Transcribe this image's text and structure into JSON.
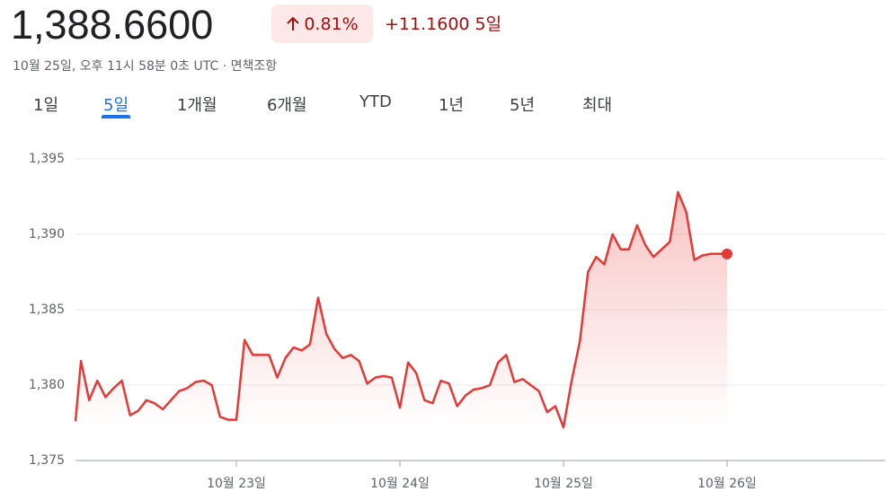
{
  "header": {
    "price": "1,388.6600",
    "change_pct": "0.81%",
    "change_abs": "+11.1600",
    "change_period": "5일",
    "timestamp": "10월 25일, 오후 11시 58분 0초 UTC",
    "separator": "·",
    "disclaimer": "면책조항"
  },
  "tabs": {
    "items": [
      "1일",
      "5일",
      "1개월",
      "6개월",
      "YTD",
      "1년",
      "5년",
      "최대"
    ],
    "selected": 1
  },
  "chart_data": {
    "type": "line",
    "color": "#e53935",
    "grid": true,
    "categories": [
      null,
      null,
      null,
      null,
      null,
      null,
      null,
      null,
      null,
      null,
      null,
      null,
      null,
      null,
      null,
      null,
      null,
      null,
      null,
      null,
      "10월 23일",
      null,
      null,
      null,
      null,
      null,
      null,
      null,
      null,
      null,
      null,
      null,
      null,
      null,
      null,
      null,
      null,
      null,
      null,
      null,
      "10월 24일",
      null,
      null,
      null,
      null,
      null,
      null,
      null,
      null,
      null,
      null,
      null,
      null,
      null,
      null,
      null,
      null,
      null,
      null,
      null,
      "10월 25일",
      null,
      null,
      null,
      null,
      null,
      null,
      null,
      null,
      null,
      null,
      null,
      null,
      null,
      null,
      null,
      null,
      null,
      null,
      null,
      "10월 26일"
    ],
    "values": [
      1377.6,
      1381.6,
      1379.0,
      1380.3,
      1379.2,
      1379.8,
      1380.3,
      1378.0,
      1378.3,
      1379.0,
      1378.8,
      1378.4,
      1379.0,
      1379.6,
      1379.8,
      1380.2,
      1380.3,
      1380.0,
      1377.9,
      1377.7,
      1377.7,
      1383.0,
      1382.0,
      1382.0,
      1382.0,
      1380.5,
      1381.8,
      1382.5,
      1382.3,
      1382.7,
      1385.8,
      1383.4,
      1382.4,
      1381.8,
      1382.0,
      1381.6,
      1380.1,
      1380.5,
      1380.6,
      1380.5,
      1378.5,
      1381.5,
      1380.8,
      1379.0,
      1378.8,
      1380.3,
      1380.1,
      1378.6,
      1379.3,
      1379.7,
      1379.8,
      1380.0,
      1381.5,
      1382.0,
      1380.2,
      1380.4,
      1380.0,
      1379.6,
      1378.2,
      1378.6,
      1377.2,
      1380.3,
      1382.9,
      1387.5,
      1388.5,
      1388.0,
      1390.0,
      1389.0,
      1389.0,
      1390.6,
      1389.3,
      1388.5,
      1389.0,
      1389.5,
      1392.8,
      1391.5,
      1388.3,
      1388.6,
      1388.7,
      1388.7,
      1388.7
    ],
    "ylim": [
      1375,
      1395
    ],
    "yticks": [
      {
        "value": 1375,
        "label": "1,375"
      },
      {
        "value": 1380,
        "label": "1,380"
      },
      {
        "value": 1385,
        "label": "1,385"
      },
      {
        "value": 1390,
        "label": "1,390"
      },
      {
        "value": 1395,
        "label": "1,395"
      }
    ]
  }
}
